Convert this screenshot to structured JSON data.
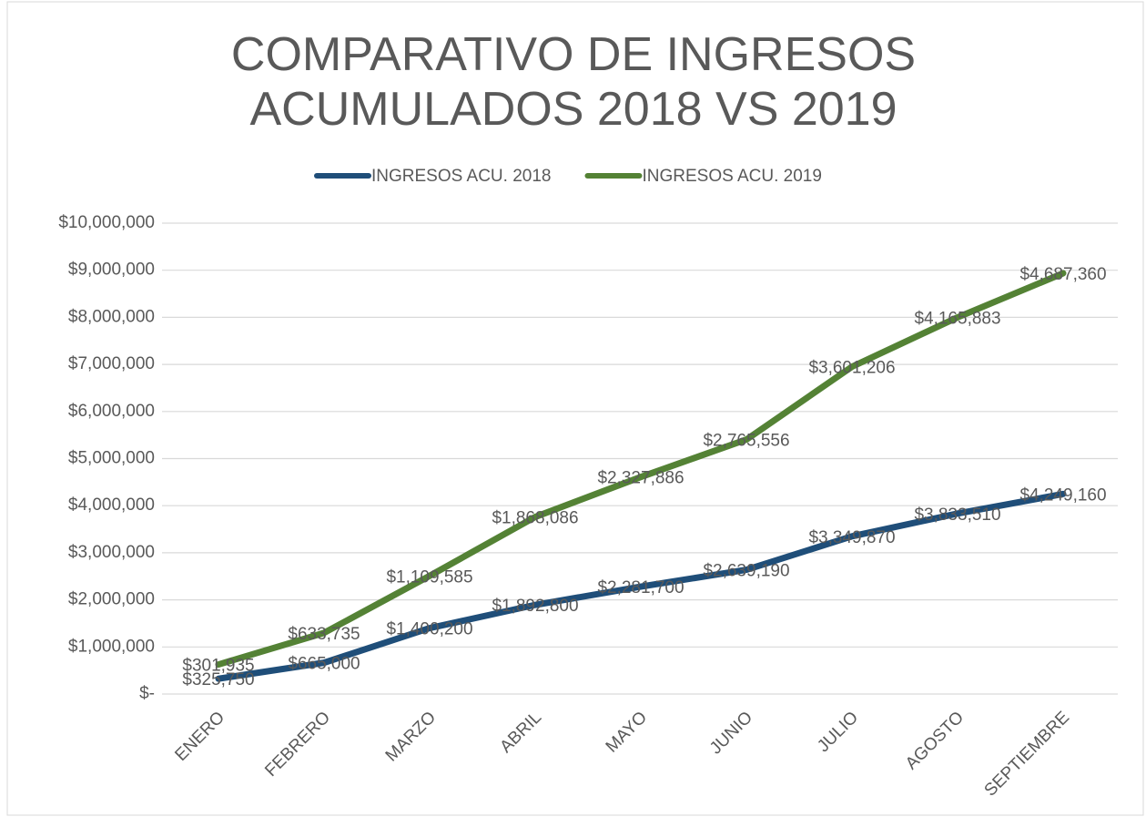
{
  "chart_data": {
    "type": "line",
    "stacked": true,
    "title": "COMPARATIVO DE INGRESOS ACUMULADOS 2018 VS 2019",
    "categories": [
      "ENERO",
      "FEBRERO",
      "MARZO",
      "ABRIL",
      "MAYO",
      "JUNIO",
      "JULIO",
      "AGOSTO",
      "SEPTIEMBRE"
    ],
    "series": [
      {
        "name": "INGRESOS ACU. 2018",
        "color": "#1f4e79",
        "values": [
          325750,
          665000,
          1400200,
          1892800,
          2281700,
          2639190,
          3349870,
          3833510,
          4249160
        ],
        "value_labels": [
          "$325,750",
          "$665,000",
          "$1,400,200",
          "$1,892,800",
          "$2,281,700",
          "$2,639,190",
          "$3,349,870",
          "$3,833,510",
          "$4,249,160"
        ]
      },
      {
        "name": "INGRESOS ACU. 2019",
        "color": "#548235",
        "values": [
          301935,
          633735,
          1109585,
          1868086,
          2327886,
          2765556,
          3601206,
          4165883,
          4687360
        ],
        "value_labels": [
          "$301,935",
          "$633,735",
          "$1,109,585",
          "$1,868,086",
          "$2,327,886",
          "$2,765,556",
          "$3,601,206",
          "$4,165,883",
          "$4,687,360"
        ]
      }
    ],
    "ylim": [
      0,
      10000000
    ],
    "yticks": [
      {
        "value": 0,
        "label": "$-"
      },
      {
        "value": 1000000,
        "label": "$1,000,000"
      },
      {
        "value": 2000000,
        "label": "$2,000,000"
      },
      {
        "value": 3000000,
        "label": "$3,000,000"
      },
      {
        "value": 4000000,
        "label": "$4,000,000"
      },
      {
        "value": 5000000,
        "label": "$5,000,000"
      },
      {
        "value": 6000000,
        "label": "$6,000,000"
      },
      {
        "value": 7000000,
        "label": "$7,000,000"
      },
      {
        "value": 8000000,
        "label": "$8,000,000"
      },
      {
        "value": 9000000,
        "label": "$9,000,000"
      },
      {
        "value": 10000000,
        "label": "$10,000,000"
      }
    ],
    "grid": true,
    "legend": "top"
  }
}
